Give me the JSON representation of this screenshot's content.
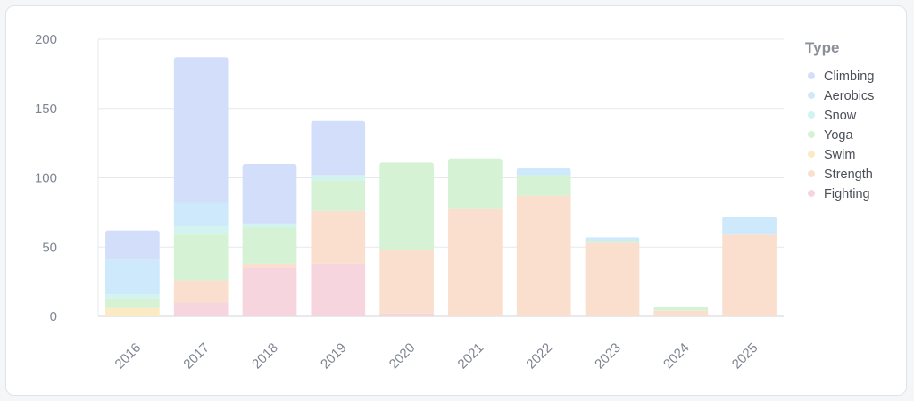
{
  "chart_data": {
    "type": "bar",
    "stacked": true,
    "categories": [
      "2016",
      "2017",
      "2018",
      "2019",
      "2020",
      "2021",
      "2022",
      "2023",
      "2024",
      "2025"
    ],
    "ylim": [
      0,
      200
    ],
    "yticks": [
      0,
      50,
      100,
      150,
      200
    ],
    "grid": true,
    "legend": {
      "title": "Type",
      "position": "right"
    },
    "series": [
      {
        "name": "Fighting",
        "color": "#f6d5df",
        "values": [
          0,
          10,
          35,
          38,
          2,
          0,
          0,
          0,
          0,
          0
        ]
      },
      {
        "name": "Strength",
        "color": "#fadfce",
        "values": [
          0,
          16,
          3,
          38,
          46,
          78,
          87,
          53,
          4,
          59
        ]
      },
      {
        "name": "Swim",
        "color": "#fbeac4",
        "values": [
          6,
          0,
          0,
          0,
          0,
          0,
          0,
          0,
          0,
          0
        ]
      },
      {
        "name": "Yoga",
        "color": "#d6f2d4",
        "values": [
          7,
          33,
          26,
          22,
          63,
          36,
          15,
          1,
          3,
          0
        ]
      },
      {
        "name": "Snow",
        "color": "#d2f3ef",
        "values": [
          3,
          6,
          3,
          4,
          0,
          0,
          0,
          0,
          0,
          0
        ]
      },
      {
        "name": "Aerobics",
        "color": "#cde9fb",
        "values": [
          25,
          17,
          0,
          0,
          0,
          0,
          5,
          3,
          0,
          13
        ]
      },
      {
        "name": "Climbing",
        "color": "#d3dffa",
        "values": [
          21,
          105,
          43,
          39,
          0,
          0,
          0,
          0,
          0,
          0
        ]
      }
    ]
  }
}
